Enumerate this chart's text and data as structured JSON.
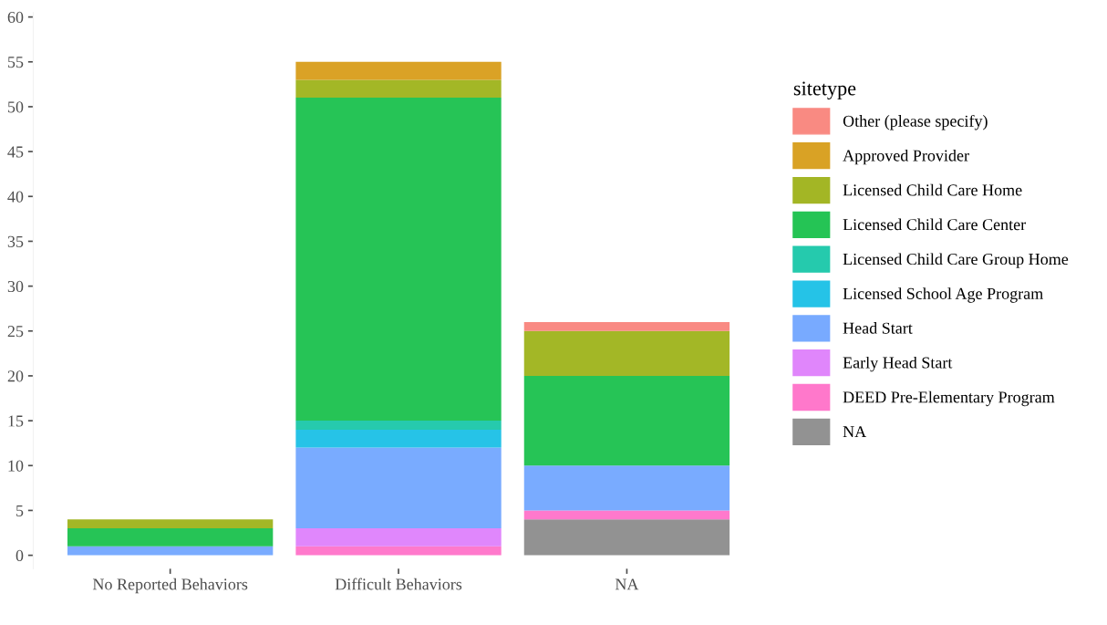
{
  "chart_data": {
    "type": "bar",
    "stacked": true,
    "categories": [
      "No Reported Behaviors",
      "Difficult Behaviors",
      "NA"
    ],
    "legend_title": "sitetype",
    "legend": "right",
    "grid": false,
    "ylim": [
      -1.5,
      60.5
    ],
    "yticks": [
      0,
      5,
      10,
      15,
      20,
      25,
      30,
      35,
      40,
      45,
      50,
      55,
      60
    ],
    "series": [
      {
        "name": "NA",
        "color": "#7f7f7f",
        "values": [
          0,
          0,
          4
        ]
      },
      {
        "name": "DEED Pre-Elementary Program",
        "color": "#ff61c3",
        "values": [
          0,
          1,
          1
        ]
      },
      {
        "name": "Early Head Start",
        "color": "#db72fb",
        "values": [
          0,
          2,
          0
        ]
      },
      {
        "name": "Head Start",
        "color": "#619cff",
        "values": [
          1,
          9,
          5
        ]
      },
      {
        "name": "Licensed School Age Program",
        "color": "#00b9e3",
        "values": [
          0,
          2,
          0
        ]
      },
      {
        "name": "Licensed Child Care Group Home",
        "color": "#00c19f",
        "values": [
          0,
          1,
          0
        ]
      },
      {
        "name": "Licensed Child Care Center",
        "color": "#00ba38",
        "values": [
          2,
          36,
          10
        ]
      },
      {
        "name": "Licensed Child Care Home",
        "color": "#93aa00",
        "values": [
          1,
          2,
          5
        ]
      },
      {
        "name": "Approved Provider",
        "color": "#d39200",
        "values": [
          0,
          2,
          0
        ]
      },
      {
        "name": "Other (please specify)",
        "color": "#f8766d",
        "values": [
          0,
          0,
          1
        ]
      }
    ]
  }
}
